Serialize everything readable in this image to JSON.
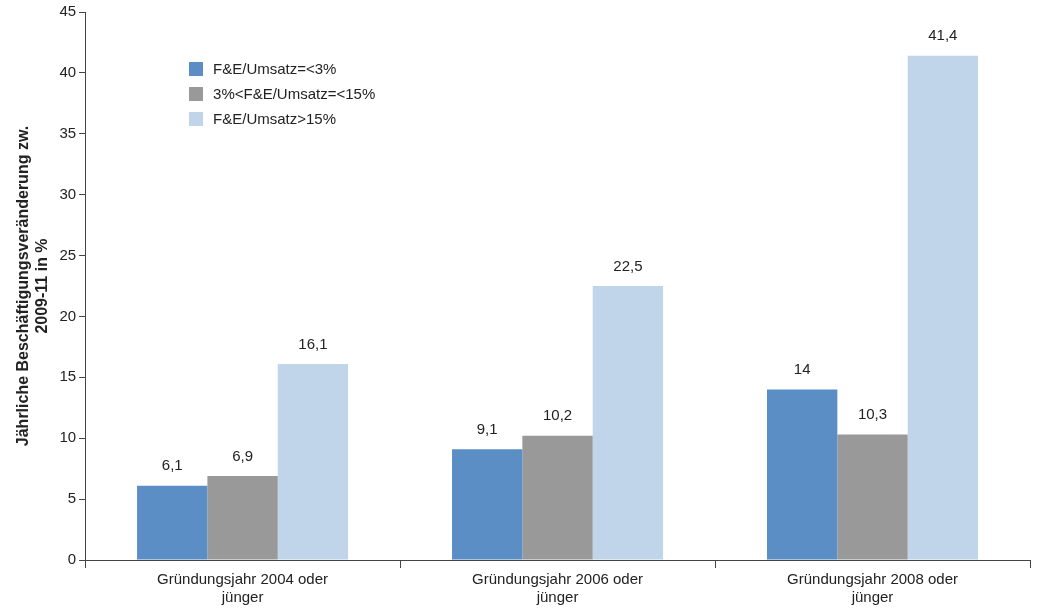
{
  "chart_data": {
    "type": "bar",
    "ylabel": "Jährliche Beschäftigungsveränderung zw. 2009-11 in %",
    "categories": [
      "Gründungsjahr 2004 oder jünger",
      "Gründungsjahr 2006 oder jünger",
      "Gründungsjahr 2008 oder jünger"
    ],
    "series": [
      {
        "name": "F&E/Umsatz=<3%",
        "color": "#5b8ec4",
        "values": [
          6.1,
          9.1,
          14
        ],
        "value_labels": [
          "6,1",
          "9,1",
          "14"
        ]
      },
      {
        "name": "3%<F&E/Umsatz=<15%",
        "color": "#999999",
        "values": [
          6.9,
          10.2,
          10.3
        ],
        "value_labels": [
          "6,9",
          "10,2",
          "10,3"
        ]
      },
      {
        "name": "F&E/Umsatz>15%",
        "color": "#c0d4ea",
        "values": [
          16.1,
          22.5,
          41.4
        ],
        "value_labels": [
          "16,1",
          "22,5",
          "41,4"
        ]
      }
    ],
    "ylim": [
      0,
      45
    ],
    "yticks": [
      0,
      5,
      10,
      15,
      20,
      25,
      30,
      35,
      40,
      45
    ],
    "grid": false,
    "legend": "top left"
  }
}
